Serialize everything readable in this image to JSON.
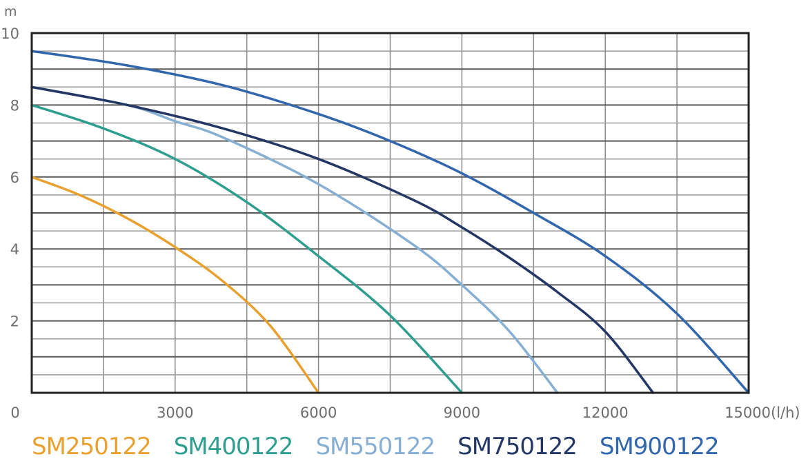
{
  "chart_data": {
    "type": "line",
    "title": "",
    "xlabel": "(l/h)",
    "ylabel": "m",
    "xlim": [
      0,
      15000
    ],
    "ylim": [
      0,
      10
    ],
    "x_ticks": [
      {
        "value": 0,
        "label": "0"
      },
      {
        "value": 3000,
        "label": "3000"
      },
      {
        "value": 6000,
        "label": "6000"
      },
      {
        "value": 9000,
        "label": "9000"
      },
      {
        "value": 12000,
        "label": "12000"
      },
      {
        "value": 15000,
        "label": "15000"
      }
    ],
    "y_ticks": [
      {
        "value": 2,
        "label": "2"
      },
      {
        "value": 4,
        "label": "4"
      },
      {
        "value": 6,
        "label": "6"
      },
      {
        "value": 8,
        "label": "8"
      },
      {
        "value": 10,
        "label": "10"
      }
    ],
    "grid": true,
    "x_gridlines": [
      1500,
      3000,
      4500,
      6000,
      7500,
      9000,
      10500,
      12000,
      13500
    ],
    "y_gridlines": [
      0.5,
      1,
      1.5,
      2,
      2.5,
      3,
      3.5,
      4,
      4.5,
      5,
      5.5,
      6,
      6.5,
      7,
      7.5,
      8,
      8.5,
      9,
      9.5
    ],
    "legend_position": "bottom",
    "series": [
      {
        "name": "SM250122",
        "color": "#e8a12f",
        "x": [
          0,
          1000,
          2000,
          3000,
          4000,
          5000,
          6000
        ],
        "y": [
          6.0,
          5.5,
          4.85,
          4.05,
          3.1,
          1.85,
          0
        ]
      },
      {
        "name": "SM400122",
        "color": "#2e9e8f",
        "x": [
          0,
          1500,
          3000,
          4500,
          6000,
          7500,
          9000
        ],
        "y": [
          8.0,
          7.35,
          6.5,
          5.3,
          3.8,
          2.15,
          0
        ]
      },
      {
        "name": "SM550122",
        "color": "#86afd3",
        "x": [
          0,
          2000,
          3000,
          4000,
          6000,
          8000,
          9000,
          10000,
          11000
        ],
        "y": [
          8.5,
          8.0,
          7.55,
          7.1,
          5.8,
          4.1,
          3.0,
          1.7,
          0
        ]
      },
      {
        "name": "SM750122",
        "color": "#243764",
        "x": [
          0,
          2000,
          4000,
          6000,
          8000,
          9000,
          10000,
          11000,
          12000,
          13000
        ],
        "y": [
          8.5,
          8.0,
          7.35,
          6.5,
          5.35,
          4.6,
          3.75,
          2.8,
          1.7,
          0
        ]
      },
      {
        "name": "SM900122",
        "color": "#3266ad",
        "x": [
          0,
          2000,
          4000,
          6000,
          7500,
          9000,
          10500,
          12000,
          13500,
          15000
        ],
        "y": [
          9.5,
          9.1,
          8.55,
          7.75,
          7.0,
          6.1,
          5.0,
          3.8,
          2.2,
          0
        ]
      }
    ]
  }
}
